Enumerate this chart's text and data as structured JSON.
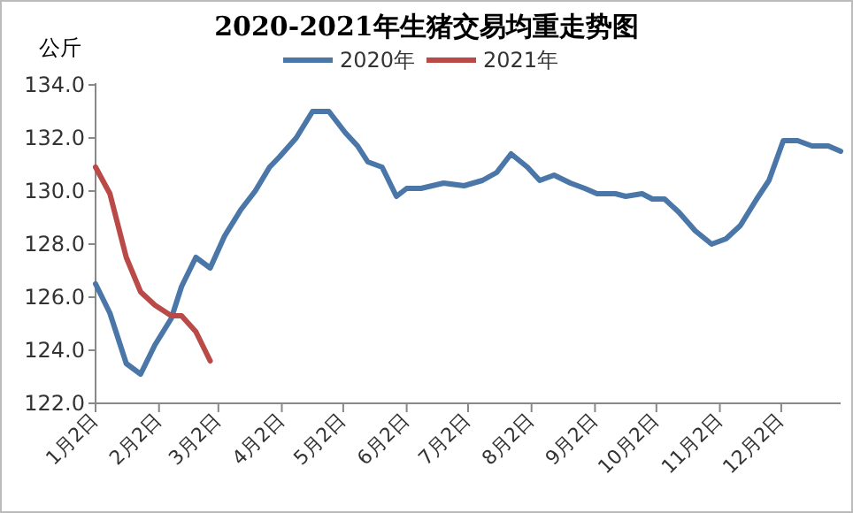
{
  "chart_data": {
    "type": "line",
    "title": "2020-2021年生猪交易均重走势图",
    "ylabel": "公斤",
    "xlim": [
      "--01-02",
      "--12-31"
    ],
    "xticks": [
      {
        "value": "--01-02",
        "label": "1月2日"
      },
      {
        "value": "--02-02",
        "label": "2月2日"
      },
      {
        "value": "--03-02",
        "label": "3月2日"
      },
      {
        "value": "--04-02",
        "label": "4月2日"
      },
      {
        "value": "--05-02",
        "label": "5月2日"
      },
      {
        "value": "--06-02",
        "label": "6月2日"
      },
      {
        "value": "--07-02",
        "label": "7月2日"
      },
      {
        "value": "--08-02",
        "label": "8月2日"
      },
      {
        "value": "--09-02",
        "label": "9月2日"
      },
      {
        "value": "--10-02",
        "label": "10月2日"
      },
      {
        "value": "--11-02",
        "label": "11月2日"
      },
      {
        "value": "--12-02",
        "label": "12月2日"
      }
    ],
    "ylim": [
      122,
      134
    ],
    "yticks": [
      {
        "value": 122,
        "label": "122.0"
      },
      {
        "value": 124,
        "label": "124.0"
      },
      {
        "value": 126,
        "label": "126.0"
      },
      {
        "value": 128,
        "label": "128.0"
      },
      {
        "value": 130,
        "label": "130.0"
      },
      {
        "value": 132,
        "label": "132.0"
      },
      {
        "value": 134,
        "label": "134.0"
      }
    ],
    "legend": "top",
    "grid": false,
    "marker": "none",
    "line_style": "solid",
    "series": [
      {
        "name": "2020年",
        "color": "#4a76a8",
        "x": [
          "--01-02",
          "--01-09",
          "--01-17",
          "--01-24",
          "--01-31",
          "--02-08",
          "--02-13",
          "--02-20",
          "--02-27",
          "--03-05",
          "--03-13",
          "--03-20",
          "--03-27",
          "--04-01",
          "--04-09",
          "--04-17",
          "--04-25",
          "--05-03",
          "--05-09",
          "--05-14",
          "--05-21",
          "--05-28",
          "--06-02",
          "--06-09",
          "--06-20",
          "--06-30",
          "--07-09",
          "--07-16",
          "--07-23",
          "--07-31",
          "--08-06",
          "--08-13",
          "--08-21",
          "--08-28",
          "--09-03",
          "--09-12",
          "--09-17",
          "--09-25",
          "--09-30",
          "--10-06",
          "--10-13",
          "--10-21",
          "--10-29",
          "--11-05",
          "--11-12",
          "--11-20",
          "--11-26",
          "--12-03",
          "--12-10",
          "--12-17",
          "--12-25",
          "--12-31"
        ],
        "values": [
          126.5,
          125.4,
          123.5,
          123.1,
          124.2,
          125.2,
          126.4,
          127.5,
          127.1,
          128.3,
          129.3,
          130.0,
          130.9,
          131.3,
          132.0,
          133.0,
          133.0,
          132.2,
          131.7,
          131.1,
          130.9,
          129.8,
          130.1,
          130.1,
          130.3,
          130.2,
          130.4,
          130.7,
          131.4,
          130.9,
          130.4,
          130.6,
          130.3,
          130.1,
          129.9,
          129.9,
          129.8,
          129.9,
          129.7,
          129.7,
          129.2,
          128.5,
          128.0,
          128.2,
          128.7,
          129.7,
          130.4,
          131.9,
          131.9,
          131.7,
          131.7,
          131.5
        ]
      },
      {
        "name": "2021年",
        "color": "#b94a48",
        "x": [
          "--01-02",
          "--01-09",
          "--01-17",
          "--01-24",
          "--01-31",
          "--02-08",
          "--02-13",
          "--02-20",
          "--02-27"
        ],
        "values": [
          130.9,
          129.9,
          127.5,
          126.2,
          125.7,
          125.3,
          125.3,
          124.7,
          123.6
        ]
      }
    ]
  }
}
